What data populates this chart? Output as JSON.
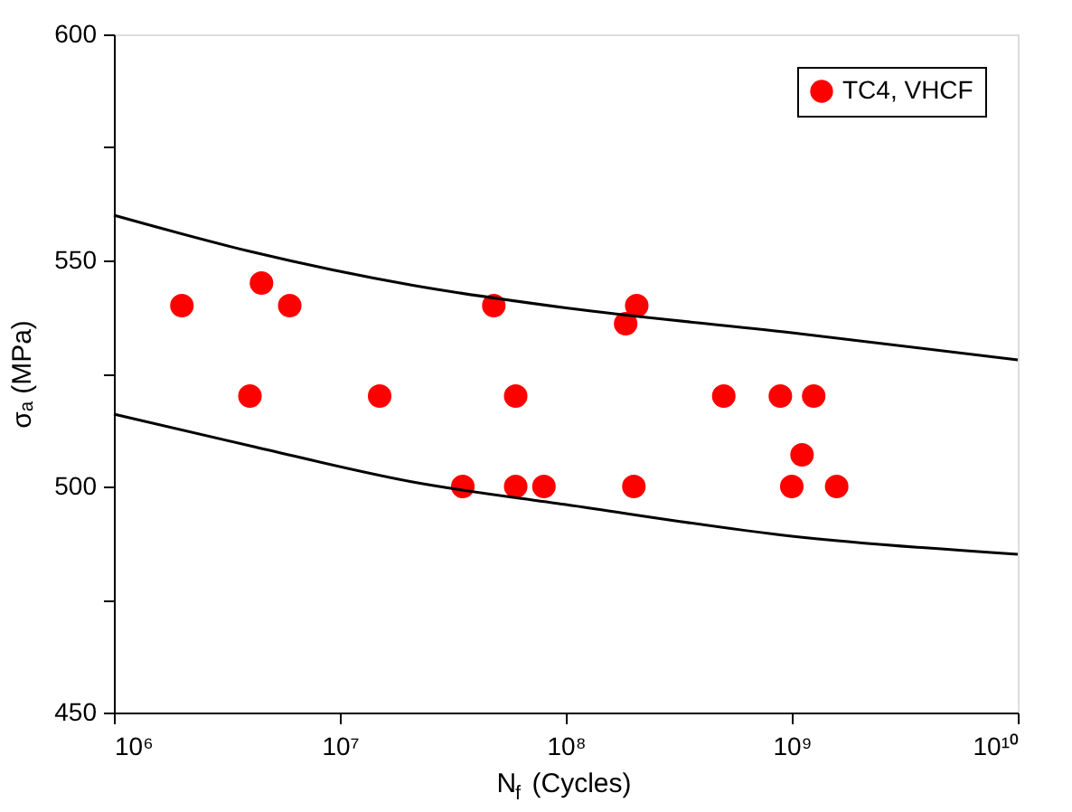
{
  "chart_data": {
    "type": "scatter",
    "xlabel": "N$_{f}$ (Cycles)",
    "ylabel": "σₐ (MPa)",
    "log": "x",
    "grid": false,
    "legend": "top right",
    "marker": "circle",
    "xlim": [
      1000000,
      10000000000
    ],
    "xticks": [
      {
        "value": 1000000,
        "label": "10⁶"
      },
      {
        "value": 10000000,
        "label": "10⁷"
      },
      {
        "value": 100000000,
        "label": "10⁸"
      },
      {
        "value": 1000000000,
        "label": "10⁹"
      },
      {
        "value": 10000000000,
        "label": "10¹⁰"
      }
    ],
    "ylim": [
      450,
      600
    ],
    "yticks": [
      450,
      {
        "value": 475,
        "label": null
      },
      500,
      {
        "value": 525,
        "label": null
      },
      550,
      {
        "value": 575,
        "label": null
      },
      600
    ],
    "series": [
      {
        "name": "TC4, VHCF",
        "color": "#ff0000",
        "x": [
          2000000,
          4000000,
          4500000,
          6000000,
          15000000,
          35000000,
          48000000,
          60000000,
          60000000,
          80000000,
          184000000,
          206000000,
          200000000,
          500000000,
          890000000,
          1000000000,
          1110000000,
          1250000000,
          1580000000
        ],
        "values": [
          540,
          520,
          545,
          540,
          520,
          500,
          540,
          520,
          500,
          500,
          536,
          540,
          500,
          520,
          520,
          500,
          507,
          520,
          500
        ]
      },
      {
        "type": "line",
        "marker": "none",
        "color": "#000000",
        "line_style": "solid",
        "x": [
          1000000,
          4000000,
          21000000,
          100000000,
          1000000000,
          10000000000
        ],
        "values": [
          560,
          552,
          544.5,
          539.5,
          534,
          528
        ]
      },
      {
        "type": "line",
        "marker": "none",
        "color": "#000000",
        "line_style": "solid",
        "x": [
          1000000,
          4000000,
          21000000,
          100000000,
          1000000000,
          10000000000
        ],
        "values": [
          516,
          509,
          501,
          496,
          489,
          485
        ]
      }
    ]
  }
}
